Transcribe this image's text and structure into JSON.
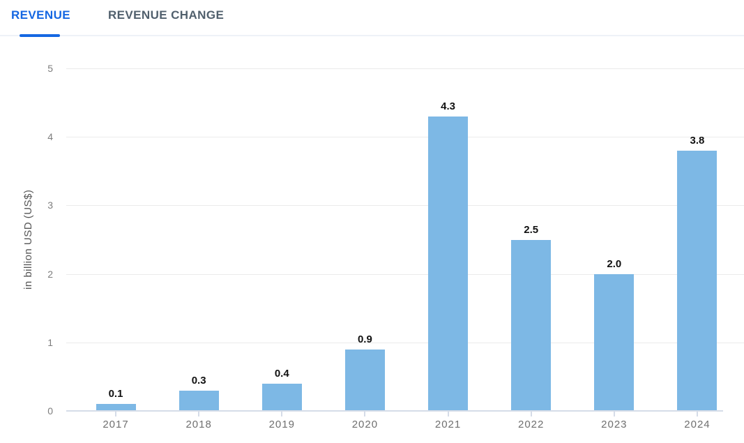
{
  "tabs": [
    {
      "label": "REVENUE",
      "active": true
    },
    {
      "label": "REVENUE CHANGE",
      "active": false
    }
  ],
  "colors": {
    "accent_blue": "#1567e2",
    "inactive_tab_text": "#51606d",
    "bar": "#7db8e5",
    "gridline": "#ebebeb",
    "axis_line": "#d5dce8",
    "ytick_text": "#7d7d7d",
    "xlabel_text": "#6f6f6f",
    "value_label_text": "#111111"
  },
  "chart_data": {
    "type": "bar",
    "categories": [
      "2017",
      "2018",
      "2019",
      "2020",
      "2021",
      "2022",
      "2023",
      "2024"
    ],
    "values": [
      0.1,
      0.3,
      0.4,
      0.9,
      4.3,
      2.5,
      2.0,
      3.8
    ],
    "value_labels": [
      "0.1",
      "0.3",
      "0.4",
      "0.9",
      "4.3",
      "2.5",
      "2.0",
      "3.8"
    ],
    "title": "",
    "xlabel": "",
    "ylabel": "in billion USD (US$)",
    "ylim": [
      0,
      5
    ],
    "yticks": [
      0,
      1,
      2,
      3,
      4,
      5
    ],
    "grid": true,
    "legend": false
  }
}
